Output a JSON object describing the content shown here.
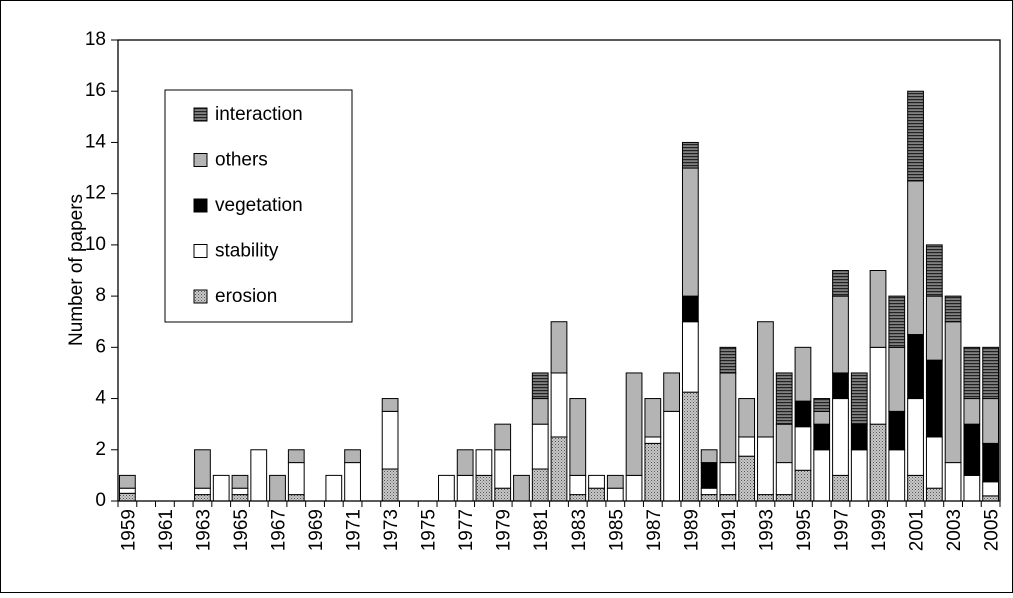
{
  "chart_data": {
    "type": "stacked_bar",
    "y_label": "Number of papers",
    "categories": [
      "1959",
      null,
      "1961",
      null,
      "1963",
      null,
      "1965",
      null,
      "1967",
      null,
      "1969",
      null,
      "1971",
      null,
      "1973",
      null,
      "1975",
      null,
      "1977",
      null,
      "1979",
      null,
      "1981",
      null,
      "1983",
      null,
      "1985",
      null,
      "1987",
      null,
      "1989",
      null,
      "1991",
      null,
      "1993",
      null,
      "1995",
      null,
      "1997",
      null,
      "1999",
      null,
      "2001",
      null,
      "2003",
      null,
      "2005"
    ],
    "series": [
      {
        "name": "erosion",
        "color": "#c8c8c8",
        "pattern": "dots",
        "values": [
          0.3,
          0,
          0,
          0,
          0.25,
          0,
          0.25,
          0,
          0,
          0.25,
          0,
          0,
          0,
          0,
          1.25,
          0,
          0,
          0,
          0,
          1,
          0.5,
          0,
          1.25,
          2.5,
          0.25,
          0.5,
          0,
          0,
          2.25,
          0,
          4.25,
          0.25,
          0.25,
          1.75,
          0.25,
          0.25,
          1.2,
          0,
          1,
          0,
          3,
          0,
          1,
          0.5,
          0,
          0,
          0.2
        ]
      },
      {
        "name": "stability",
        "color": "#ffffff",
        "pattern": "solid",
        "values": [
          0.2,
          0,
          0,
          0,
          0.25,
          1,
          0.25,
          2,
          0,
          1.25,
          0,
          1,
          1.5,
          0,
          2.25,
          0,
          0,
          1,
          1,
          1,
          1.5,
          0,
          1.75,
          2.5,
          0.75,
          0.5,
          0.5,
          1,
          0.25,
          3.5,
          2.75,
          0.25,
          1.25,
          0.75,
          2.25,
          1.25,
          1.7,
          2,
          3,
          2,
          3,
          2,
          3,
          2,
          1.5,
          1,
          0.55
        ]
      },
      {
        "name": "vegetation",
        "color": "#000000",
        "pattern": "solid",
        "values": [
          0,
          0,
          0,
          0,
          0,
          0,
          0,
          0,
          0,
          0,
          0,
          0,
          0,
          0,
          0,
          0,
          0,
          0,
          0,
          0,
          0,
          0,
          0,
          0,
          0,
          0,
          0,
          0,
          0,
          0,
          1,
          1,
          0,
          0,
          0,
          0,
          1,
          1,
          1,
          1,
          0,
          1.5,
          2.5,
          3,
          0,
          2,
          1.5
        ]
      },
      {
        "name": "others",
        "color": "#b4b4b4",
        "pattern": "solid",
        "values": [
          0.5,
          0,
          0,
          0,
          1.5,
          0,
          0.5,
          0,
          1,
          0.5,
          0,
          0,
          0.5,
          0,
          0.5,
          0,
          0,
          0,
          1,
          0,
          1,
          1,
          1,
          2,
          3,
          0,
          0.5,
          4,
          1.5,
          1.5,
          5,
          0.5,
          3.5,
          1.5,
          4.5,
          1.5,
          2.1,
          0.5,
          3,
          0,
          3,
          2.5,
          6,
          2.5,
          5.5,
          1,
          1.75
        ]
      },
      {
        "name": "interaction",
        "color": "#808080",
        "pattern": "stripes",
        "values": [
          0,
          0,
          0,
          0,
          0,
          0,
          0,
          0,
          0,
          0,
          0,
          0,
          0,
          0,
          0,
          0,
          0,
          0,
          0,
          0,
          0,
          0,
          1,
          0,
          0,
          0,
          0,
          0,
          0,
          0,
          1,
          0,
          1,
          0,
          0,
          2,
          0,
          0.5,
          1,
          2,
          0,
          2,
          3.5,
          2,
          1,
          2,
          2
        ]
      }
    ],
    "ylim": [
      0,
      18
    ],
    "yticks": [
      0,
      2,
      4,
      6,
      8,
      10,
      12,
      14,
      16,
      18
    ]
  }
}
